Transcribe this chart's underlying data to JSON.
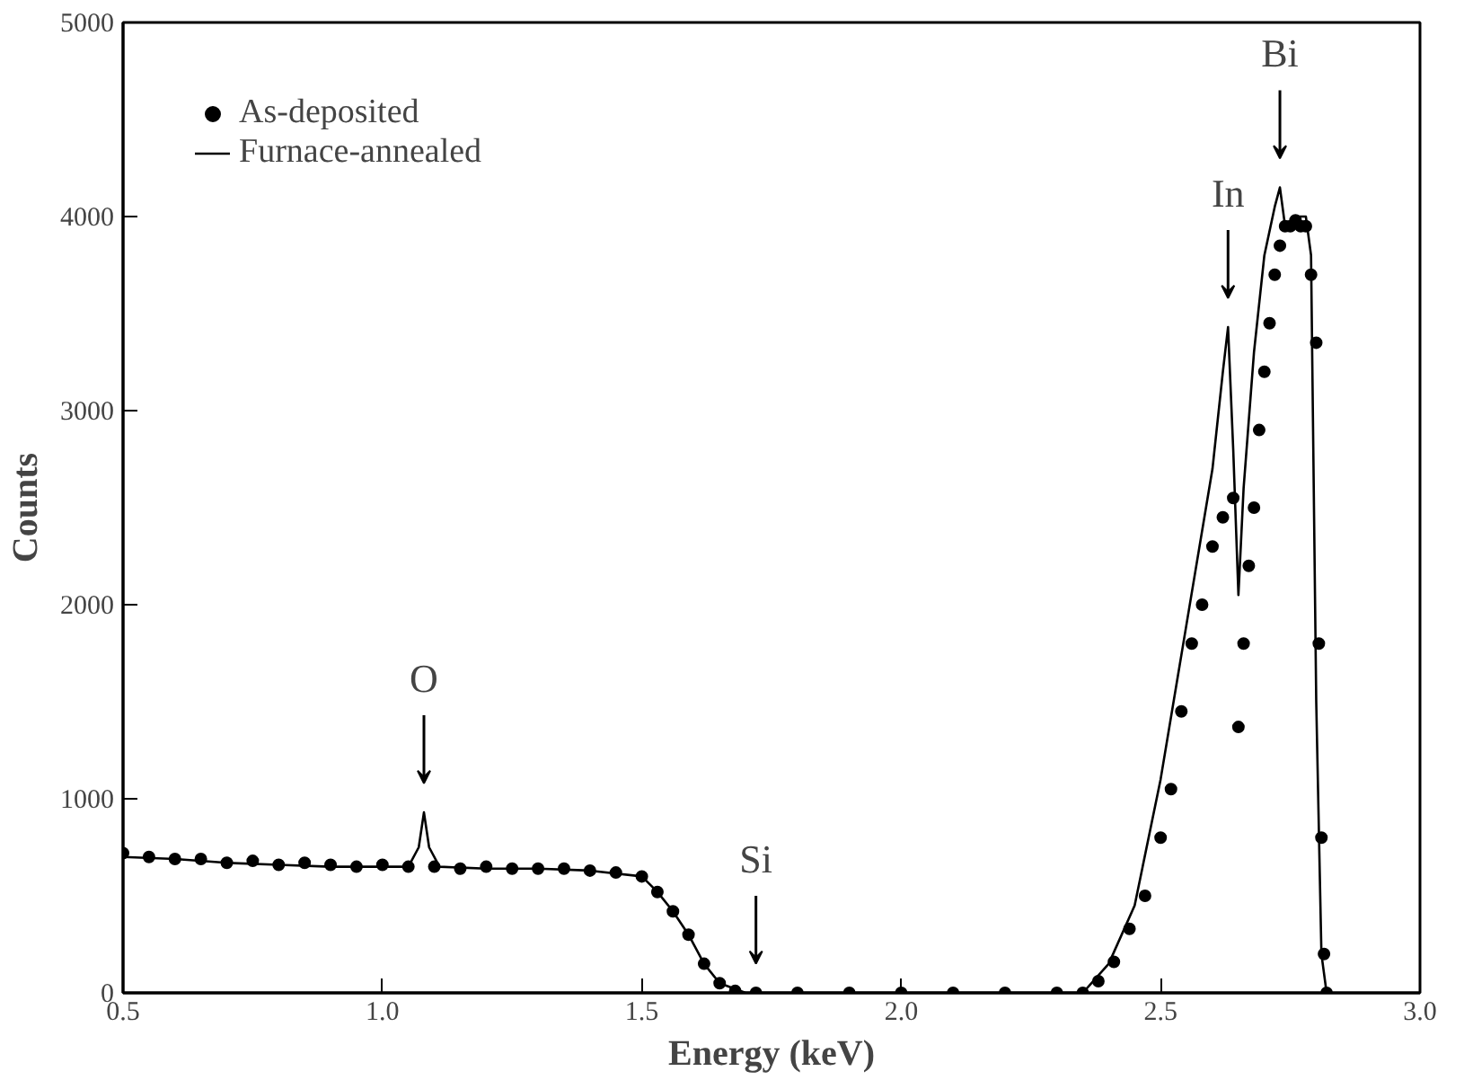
{
  "chart_data": {
    "type": "scatter",
    "xlabel": "Energy (keV)",
    "ylabel": "Counts",
    "xlim": [
      0.5,
      3.0
    ],
    "ylim": [
      0,
      5000
    ],
    "xticks": [
      {
        "value": 0.5,
        "label": "0.5"
      },
      {
        "value": 1.0,
        "label": "1.0"
      },
      {
        "value": 1.5,
        "label": "1.5"
      },
      {
        "value": 2.0,
        "label": "2.0"
      },
      {
        "value": 2.5,
        "label": "2.5"
      },
      {
        "value": 3.0,
        "label": "3.0"
      }
    ],
    "yticks": [
      0,
      1000,
      2000,
      3000,
      4000,
      5000
    ],
    "grid": false,
    "legend": "top left",
    "series": [
      {
        "name": "As-deposited",
        "marker": "circle",
        "color": "#000000",
        "x": [
          0.5,
          0.55,
          0.6,
          0.65,
          0.7,
          0.75,
          0.8,
          0.85,
          0.9,
          0.95,
          1.0,
          1.05,
          1.1,
          1.15,
          1.2,
          1.25,
          1.3,
          1.35,
          1.4,
          1.45,
          1.5,
          1.53,
          1.56,
          1.59,
          1.62,
          1.65,
          1.68,
          1.72,
          1.8,
          1.9,
          2.0,
          2.1,
          2.2,
          2.3,
          2.35,
          2.38,
          2.41,
          2.44,
          2.47,
          2.5,
          2.52,
          2.54,
          2.56,
          2.58,
          2.6,
          2.62,
          2.64,
          2.65,
          2.66,
          2.67,
          2.68,
          2.69,
          2.7,
          2.71,
          2.72,
          2.73,
          2.74,
          2.75,
          2.76,
          2.77,
          2.78,
          2.79,
          2.8,
          2.805,
          2.81,
          2.815,
          2.82
        ],
        "values": [
          720,
          700,
          690,
          690,
          670,
          680,
          660,
          670,
          660,
          650,
          660,
          650,
          650,
          640,
          650,
          640,
          640,
          640,
          630,
          620,
          600,
          520,
          420,
          300,
          150,
          50,
          10,
          0,
          0,
          0,
          0,
          0,
          0,
          0,
          0,
          60,
          160,
          330,
          500,
          800,
          1050,
          1450,
          1800,
          2000,
          2300,
          2450,
          2550,
          1370,
          1800,
          2200,
          2500,
          2900,
          3200,
          3450,
          3700,
          3850,
          3950,
          3950,
          3980,
          3950,
          3950,
          3700,
          3350,
          1800,
          800,
          200,
          0
        ]
      },
      {
        "name": "Furnace-annealed",
        "type": "line",
        "marker": "none",
        "color": "#000000",
        "x": [
          0.5,
          0.6,
          0.7,
          0.8,
          0.9,
          1.0,
          1.05,
          1.07,
          1.08,
          1.09,
          1.11,
          1.2,
          1.3,
          1.4,
          1.5,
          1.53,
          1.56,
          1.59,
          1.62,
          1.65,
          1.7,
          2.0,
          2.3,
          2.35,
          2.4,
          2.45,
          2.5,
          2.55,
          2.6,
          2.62,
          2.63,
          2.64,
          2.65,
          2.66,
          2.68,
          2.7,
          2.72,
          2.73,
          2.74,
          2.76,
          2.78,
          2.79,
          2.8,
          2.81,
          2.82
        ],
        "values": [
          700,
          690,
          670,
          660,
          650,
          650,
          650,
          750,
          930,
          750,
          650,
          640,
          640,
          630,
          600,
          520,
          420,
          300,
          150,
          50,
          0,
          0,
          0,
          0,
          150,
          450,
          1100,
          1900,
          2700,
          3200,
          3430,
          2800,
          2050,
          2600,
          3300,
          3800,
          4050,
          4150,
          3950,
          4000,
          4000,
          3800,
          1500,
          200,
          0
        ]
      }
    ],
    "annotations": [
      {
        "text": "O",
        "x": 1.08,
        "y": 930
      },
      {
        "text": "Si",
        "x": 1.72,
        "y": 0
      },
      {
        "text": "In",
        "x": 2.63,
        "y": 3430
      },
      {
        "text": "Bi",
        "x": 2.73,
        "y": 4150
      }
    ]
  }
}
